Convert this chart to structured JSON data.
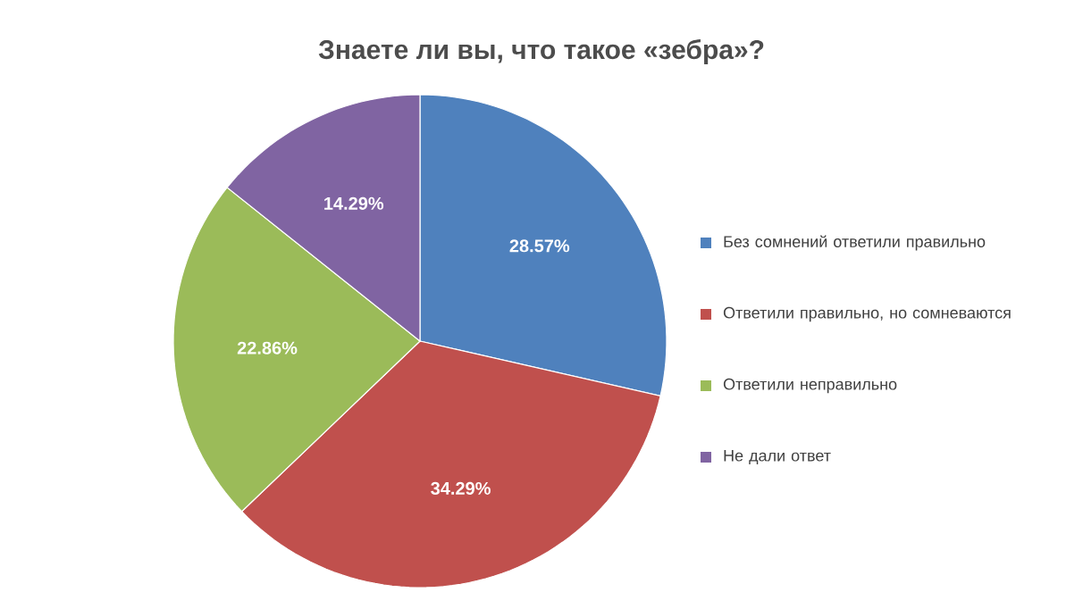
{
  "chart_data": {
    "type": "pie",
    "title": "Знаете ли вы, что такое «зебра»?",
    "categories": [
      "Без сомнений ответили правильно",
      "Ответили правильно, но сомневаются",
      "Ответили неправильно",
      "Не дали ответ"
    ],
    "values": [
      28.57,
      34.29,
      22.86,
      14.29
    ],
    "colors": [
      "#4f81bd",
      "#c0504d",
      "#9bbb59",
      "#8064a2"
    ],
    "value_labels": [
      "28.57%",
      "34.29%",
      "22.86%",
      "14.29%"
    ],
    "legend": "right"
  }
}
